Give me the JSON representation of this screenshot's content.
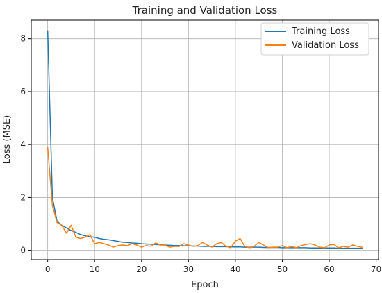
{
  "chart_data": {
    "type": "line",
    "title": "Training and Validation Loss",
    "xlabel": "Epoch",
    "ylabel": "Loss (MSE)",
    "xlim": [
      -3.5,
      70.5
    ],
    "ylim": [
      -0.35,
      8.7
    ],
    "xticks": [
      0,
      10,
      20,
      30,
      40,
      50,
      60,
      70
    ],
    "yticks": [
      0,
      2,
      4,
      6,
      8
    ],
    "grid": true,
    "legend_position": "top-right",
    "series": [
      {
        "name": "Training Loss",
        "color": "#1f77b4",
        "x": [
          0,
          1,
          2,
          3,
          4,
          5,
          6,
          7,
          8,
          9,
          10,
          11,
          12,
          13,
          14,
          15,
          16,
          17,
          18,
          19,
          20,
          21,
          22,
          23,
          24,
          25,
          26,
          27,
          28,
          29,
          30,
          31,
          32,
          33,
          34,
          35,
          36,
          37,
          38,
          39,
          40,
          41,
          42,
          43,
          44,
          45,
          46,
          47,
          48,
          49,
          50,
          51,
          52,
          53,
          54,
          55,
          56,
          57,
          58,
          59,
          60,
          61,
          62,
          63,
          64,
          65,
          66,
          67
        ],
        "y": [
          8.3,
          2.0,
          1.1,
          0.95,
          0.85,
          0.75,
          0.68,
          0.6,
          0.55,
          0.52,
          0.5,
          0.45,
          0.42,
          0.4,
          0.37,
          0.34,
          0.31,
          0.3,
          0.28,
          0.27,
          0.25,
          0.24,
          0.23,
          0.22,
          0.21,
          0.2,
          0.19,
          0.18,
          0.18,
          0.17,
          0.17,
          0.16,
          0.16,
          0.15,
          0.15,
          0.15,
          0.14,
          0.14,
          0.14,
          0.13,
          0.13,
          0.13,
          0.12,
          0.12,
          0.12,
          0.12,
          0.11,
          0.11,
          0.11,
          0.11,
          0.1,
          0.1,
          0.1,
          0.1,
          0.1,
          0.1,
          0.09,
          0.09,
          0.09,
          0.09,
          0.09,
          0.09,
          0.08,
          0.08,
          0.08,
          0.08,
          0.08,
          0.08
        ]
      },
      {
        "name": "Validation Loss",
        "color": "#ff7f0e",
        "x": [
          0,
          1,
          2,
          3,
          4,
          5,
          6,
          7,
          8,
          9,
          10,
          11,
          12,
          13,
          14,
          15,
          16,
          17,
          18,
          19,
          20,
          21,
          22,
          23,
          24,
          25,
          26,
          27,
          28,
          29,
          30,
          31,
          32,
          33,
          34,
          35,
          36,
          37,
          38,
          39,
          40,
          41,
          42,
          43,
          44,
          45,
          46,
          47,
          48,
          49,
          50,
          51,
          52,
          53,
          54,
          55,
          56,
          57,
          58,
          59,
          60,
          61,
          62,
          63,
          64,
          65,
          66,
          67
        ],
        "y": [
          3.9,
          1.7,
          1.05,
          0.95,
          0.65,
          0.95,
          0.5,
          0.45,
          0.5,
          0.6,
          0.25,
          0.3,
          0.25,
          0.2,
          0.12,
          0.18,
          0.2,
          0.18,
          0.25,
          0.2,
          0.12,
          0.18,
          0.15,
          0.28,
          0.2,
          0.2,
          0.12,
          0.15,
          0.15,
          0.25,
          0.2,
          0.15,
          0.18,
          0.3,
          0.2,
          0.12,
          0.25,
          0.3,
          0.15,
          0.1,
          0.35,
          0.45,
          0.15,
          0.1,
          0.15,
          0.3,
          0.2,
          0.1,
          0.12,
          0.12,
          0.18,
          0.1,
          0.15,
          0.1,
          0.18,
          0.22,
          0.25,
          0.2,
          0.12,
          0.1,
          0.2,
          0.22,
          0.1,
          0.15,
          0.12,
          0.2,
          0.15,
          0.12
        ]
      }
    ]
  }
}
